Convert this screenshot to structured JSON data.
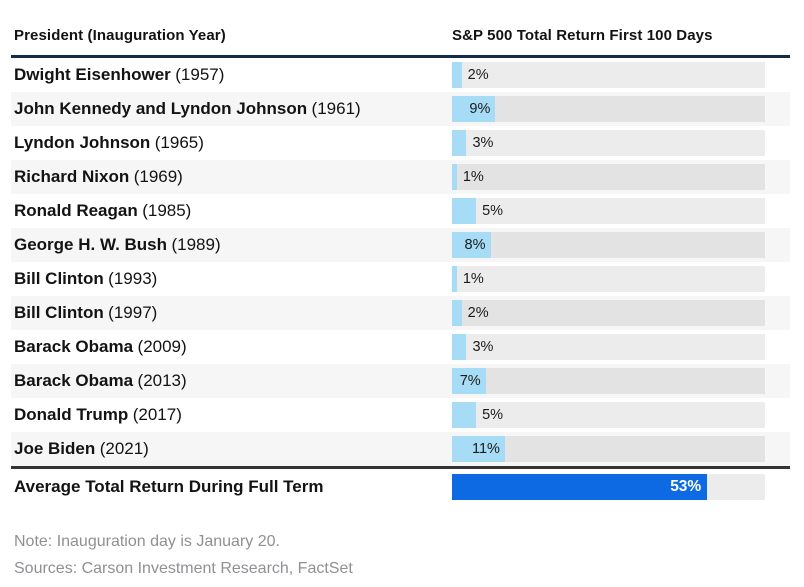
{
  "table": {
    "headers": [
      "President (Inauguration Year)",
      "S&P 500 Total Return First 100 Days"
    ],
    "rows": [
      {
        "president": "Dwight Eisenhower",
        "year": "(1957)",
        "value": 2,
        "label": "2%"
      },
      {
        "president": "John Kennedy and Lyndon Johnson",
        "year": "(1961)",
        "value": 9,
        "label": "9%"
      },
      {
        "president": "Lyndon Johnson",
        "year": "(1965)",
        "value": 3,
        "label": "3%"
      },
      {
        "president": "Richard Nixon",
        "year": "(1969)",
        "value": 1,
        "label": "1%"
      },
      {
        "president": "Ronald Reagan",
        "year": "(1985)",
        "value": 5,
        "label": "5%"
      },
      {
        "president": "George H. W. Bush",
        "year": "(1989)",
        "value": 8,
        "label": "8%"
      },
      {
        "president": "Bill Clinton",
        "year": "(1993)",
        "value": 1,
        "label": "1%"
      },
      {
        "president": "Bill Clinton",
        "year": "(1997)",
        "value": 2,
        "label": "2%"
      },
      {
        "president": "Barack Obama",
        "year": "(2009)",
        "value": 3,
        "label": "3%"
      },
      {
        "president": "Barack Obama",
        "year": "(2013)",
        "value": 7,
        "label": "7%"
      },
      {
        "president": "Donald Trump",
        "year": "(2017)",
        "value": 5,
        "label": "5%"
      },
      {
        "president": "Joe Biden",
        "year": "(2021)",
        "value": 11,
        "label": "11%"
      }
    ],
    "summary": {
      "label": "Average Total Return During Full Term",
      "value": 53,
      "bar_label": "53%"
    }
  },
  "notes": [
    "Note: Inauguration day is January 20.",
    "Sources: Carson Investment Research, FactSet"
  ],
  "colors": {
    "bar_light_blue": "#a6dcf5",
    "bar_average_blue": "#0e6ae3",
    "track_gray": "rgba(19,19,19,0.08)",
    "header_rule_navy": "#132c47",
    "summary_rule_dark": "#343434",
    "row_alt_background": "#f6f6f6",
    "note_text_gray": "#8e9093"
  },
  "chart_data": {
    "type": "bar",
    "orientation": "horizontal",
    "title": "",
    "xlabel": "S&P 500 Total Return First 100 Days",
    "ylabel": "President (Inauguration Year)",
    "categories": [
      "Dwight Eisenhower (1957)",
      "John Kennedy and Lyndon Johnson (1961)",
      "Lyndon Johnson (1965)",
      "Richard Nixon (1969)",
      "Ronald Reagan (1985)",
      "George H. W. Bush (1989)",
      "Bill Clinton (1993)",
      "Bill Clinton (1997)",
      "Barack Obama (2009)",
      "Barack Obama (2013)",
      "Donald Trump (2017)",
      "Joe Biden (2021)",
      "Average Total Return During Full Term"
    ],
    "values": [
      2,
      9,
      3,
      1,
      5,
      8,
      1,
      2,
      3,
      7,
      5,
      11,
      53
    ],
    "value_labels": [
      "2%",
      "9%",
      "3%",
      "1%",
      "5%",
      "8%",
      "1%",
      "2%",
      "3%",
      "7%",
      "5%",
      "11%",
      "53%"
    ],
    "xlim": [
      0,
      65
    ],
    "grid": false,
    "legend": false
  }
}
